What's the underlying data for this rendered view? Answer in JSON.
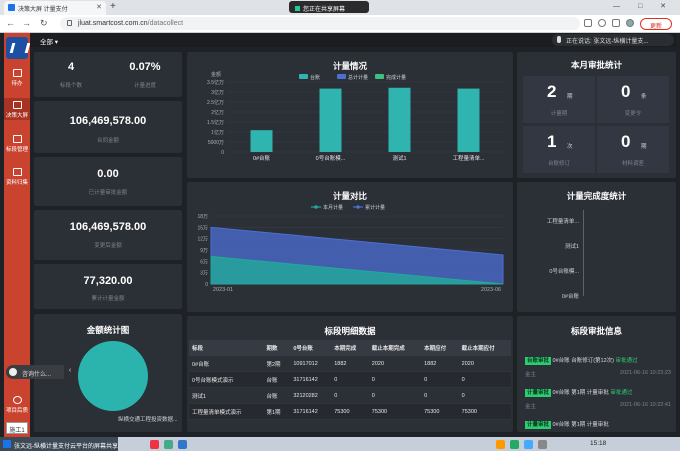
{
  "browser": {
    "tab_title": "决策大屏 计量支付",
    "new_tab": "+",
    "share_banner": "您正在共享屏幕",
    "url_host": "jluat.smartcost.com.cn",
    "url_path": "/datacollect",
    "update_label": "更新",
    "window_controls": "— □ ✕"
  },
  "sidebar": {
    "items": [
      {
        "label": "待办"
      },
      {
        "label": "决策大屏"
      },
      {
        "label": "标段管理"
      },
      {
        "label": "资料归集"
      },
      {
        "label": "项目后质"
      }
    ],
    "consult": "咨询什么...",
    "consult_chev": "‹",
    "chat_btn": "施工1"
  },
  "topbar": {
    "scope": "全部 ▾",
    "ai_text": "正在说话: 张文远-纵横计量支..."
  },
  "stats": {
    "count": "4",
    "count_label": "标段个数",
    "rate": "0.07%",
    "rate_label": "计量进度",
    "contract_amount": "106,469,578.00",
    "contract_label": "合同金额",
    "paid_amount": "0.00",
    "paid_label": "已计量审批金额",
    "change_amount": "106,469,578.00",
    "change_label": "变更后金额",
    "cumulative": "77,320.00",
    "cumulative_label": "累计计量金额"
  },
  "panels": {
    "measure_title": "计量情况",
    "compare_title": "计量对比",
    "monthly_title": "本月审批统计",
    "completion_title": "计量完成度统计",
    "amount_title": "金额统计图",
    "detail_title": "标段明细数据",
    "approval_title": "标段审批信息"
  },
  "monthly": [
    {
      "value": "2",
      "unit": "期",
      "label": "计量期"
    },
    {
      "value": "0",
      "unit": "条",
      "label": "变更令"
    },
    {
      "value": "1",
      "unit": "次",
      "label": "台账修订"
    },
    {
      "value": "0",
      "unit": "期",
      "label": "材料调差"
    }
  ],
  "completion_labels": [
    "工程量清单...",
    "测试1",
    "0号台账模...",
    "0#台账"
  ],
  "pie_label": "纵横交通工程投资数据...",
  "detail_table": {
    "headers": [
      "标段",
      "期数",
      "0号台账",
      "本期完成",
      "截止本期完成",
      "本期应付",
      "截止本期应付"
    ],
    "rows": [
      [
        "0#台账",
        "第2期",
        "10917012",
        "1882",
        "2020",
        "1882",
        "2020"
      ],
      [
        "0号台账模式演示",
        "台账",
        "31716142",
        "0",
        "0",
        "0",
        "0"
      ],
      [
        "测试1",
        "台账",
        "32120282",
        "0",
        "0",
        "0",
        "0"
      ],
      [
        "工程量清单模式演示",
        "第1期",
        "31716142",
        "75300",
        "75300",
        "75300",
        "75300"
      ]
    ]
  },
  "approvals": [
    {
      "tag": "台账审批",
      "text": "0#台账 台账修订(第12次)",
      "status": "审批通过",
      "who": "金主",
      "time": "2021-06-16 10:23:23"
    },
    {
      "tag": "计量审批",
      "text": "0#台账 第1期 计量审批 ",
      "status": "审批通过",
      "who": "金主",
      "time": "2021-06-16 10:22:41"
    },
    {
      "tag": "计量审批",
      "text": "0#台账 第1期 计量审批",
      "status": "",
      "who": "",
      "time": ""
    }
  ],
  "taskbar": {
    "item": "张文远-纵横计量支付云平台的屏幕共享",
    "clock": "15:18"
  },
  "chart_data": [
    {
      "type": "bar",
      "title": "计量情况",
      "ylabel": "金额",
      "legend": [
        "台账",
        "总计计量",
        "完成计量"
      ],
      "legend_colors": [
        "#2fb4b0",
        "#4e6fd2",
        "#3fbf7f"
      ],
      "categories": [
        "0#台账",
        "0号台账模...",
        "测试1",
        "工程量清单..."
      ],
      "values": [
        10917012,
        31716142,
        32120282,
        31716142
      ],
      "yticks": [
        "0",
        "5000万",
        "1亿万",
        "1.5亿万",
        "2亿万",
        "2.5亿万",
        "3亿万",
        "3.5亿万"
      ],
      "ylim": [
        0,
        35000000
      ]
    },
    {
      "type": "area",
      "title": "计量对比",
      "legend": [
        "本月计量",
        "累计计量"
      ],
      "legend_colors": [
        "#23a99a",
        "#4c6fd6"
      ],
      "x": [
        "2023-01",
        "2023-06"
      ],
      "series": [
        {
          "name": "本月计量",
          "values": [
            73000,
            0
          ]
        },
        {
          "name": "累计计量",
          "values": [
            150000,
            77000
          ]
        }
      ],
      "yticks": [
        "0",
        "3万",
        "6万",
        "9万",
        "12万",
        "15万",
        "18万"
      ],
      "ylim": [
        0,
        180000
      ]
    }
  ]
}
